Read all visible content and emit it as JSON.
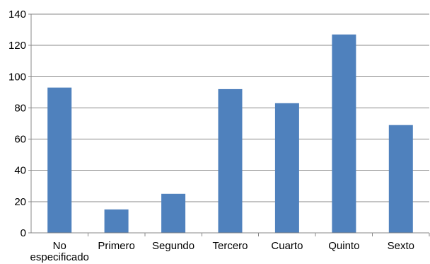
{
  "chart_data": {
    "type": "bar",
    "categories": [
      "No especificado",
      "Primero",
      "Segundo",
      "Tercero",
      "Cuarto",
      "Quinto",
      "Sexto"
    ],
    "category_label_lines": [
      [
        "No",
        "especificado"
      ],
      [
        "Primero"
      ],
      [
        "Segundo"
      ],
      [
        "Tercero"
      ],
      [
        "Cuarto"
      ],
      [
        "Quinto"
      ],
      [
        "Sexto"
      ]
    ],
    "values": [
      93,
      15,
      25,
      92,
      83,
      127,
      69
    ],
    "title": "",
    "xlabel": "",
    "ylabel": "",
    "ylim": [
      0,
      140
    ],
    "yticks": [
      0,
      20,
      40,
      60,
      80,
      100,
      120,
      140
    ],
    "grid": true,
    "legend": "none",
    "colors": {
      "bar": "#4f81bd",
      "grid": "#888888",
      "axis": "#888888"
    }
  }
}
